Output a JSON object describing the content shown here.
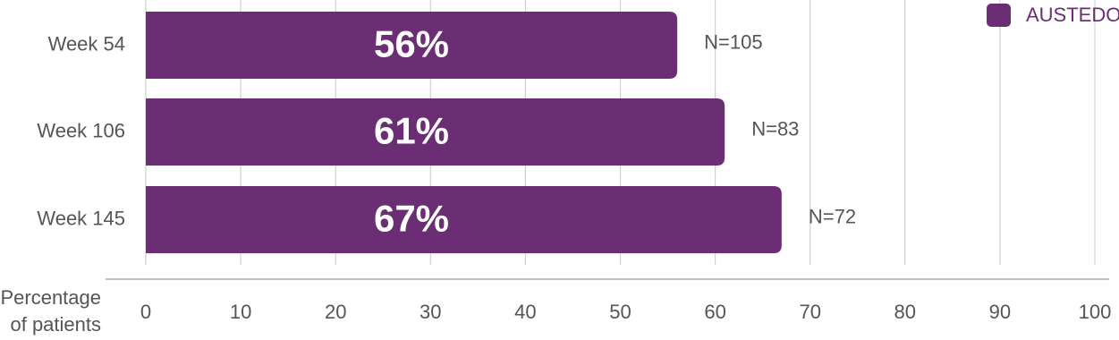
{
  "chart_data": {
    "type": "bar",
    "orientation": "horizontal",
    "categories": [
      "Week 54",
      "Week 106",
      "Week 145"
    ],
    "series": [
      {
        "name": "AUSTEDO",
        "color": "#6b2e74",
        "values": [
          56,
          61,
          67
        ],
        "value_labels": [
          "56%",
          "61%",
          "67%"
        ]
      }
    ],
    "annotations": [
      "N=105",
      "N=83",
      "N=72"
    ],
    "x_label": "Percentage of patients",
    "xlim": [
      0,
      100
    ],
    "xticks": [
      0,
      10,
      20,
      30,
      40,
      50,
      60,
      70,
      80,
      90,
      100
    ],
    "grid": true,
    "legend": "top-right"
  }
}
